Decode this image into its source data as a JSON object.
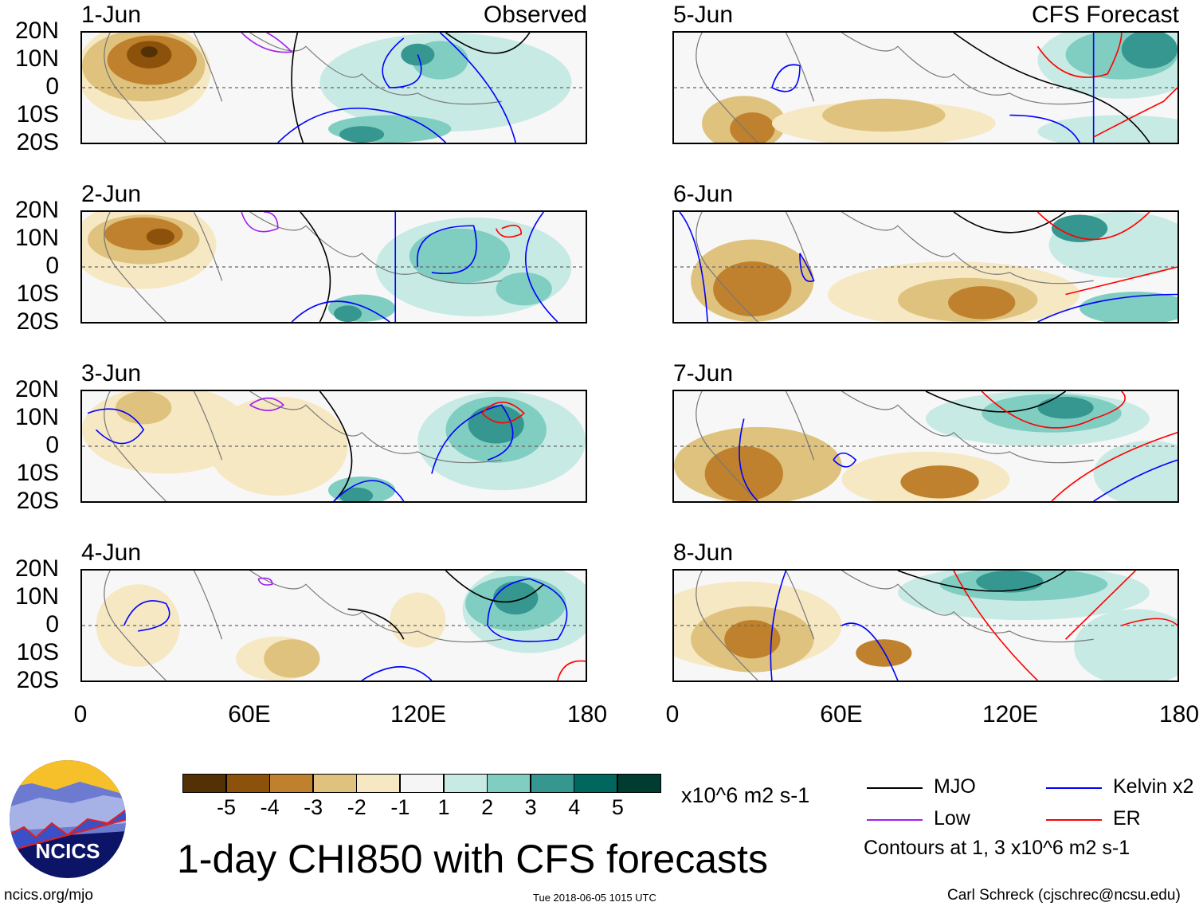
{
  "figure": {
    "title": "1-day CHI850 with CFS forecasts",
    "left_column_label": "Observed",
    "right_column_label": "CFS Forecast",
    "lat_labels": [
      "20N",
      "10N",
      "0",
      "10S",
      "20S"
    ],
    "lon_labels": [
      "0",
      "60E",
      "120E",
      "180"
    ]
  },
  "panels": {
    "observed": [
      {
        "date": "1-Jun"
      },
      {
        "date": "2-Jun"
      },
      {
        "date": "3-Jun"
      },
      {
        "date": "4-Jun"
      }
    ],
    "forecast": [
      {
        "date": "5-Jun"
      },
      {
        "date": "6-Jun"
      },
      {
        "date": "7-Jun"
      },
      {
        "date": "8-Jun"
      }
    ]
  },
  "colorbar": {
    "labels": [
      "-5",
      "-4",
      "-3",
      "-2",
      "-1",
      "1",
      "2",
      "3",
      "4",
      "5"
    ],
    "colors": [
      "#543005",
      "#8c510a",
      "#bf812d",
      "#dfc27d",
      "#f6e8c3",
      "#f5f5f5",
      "#c7eae5",
      "#80cdc1",
      "#35978f",
      "#01665e",
      "#003c30"
    ],
    "units": "x10^6 m2 s-1"
  },
  "legend": {
    "items": [
      {
        "label": "MJO",
        "color": "#000000"
      },
      {
        "label": "Kelvin x2",
        "color": "#0000ff"
      },
      {
        "label": "Low",
        "color": "#a020f0"
      },
      {
        "label": "ER",
        "color": "#ff0000"
      }
    ],
    "note": "Contours at 1, 3 x10^6 m2 s-1"
  },
  "logo": {
    "text": "NCICS"
  },
  "footer": {
    "url": "ncics.org/mjo",
    "timestamp": "Tue 2018-06-05 1015 UTC",
    "author": "Carl Schreck (cjschrec@ncsu.edu)"
  }
}
